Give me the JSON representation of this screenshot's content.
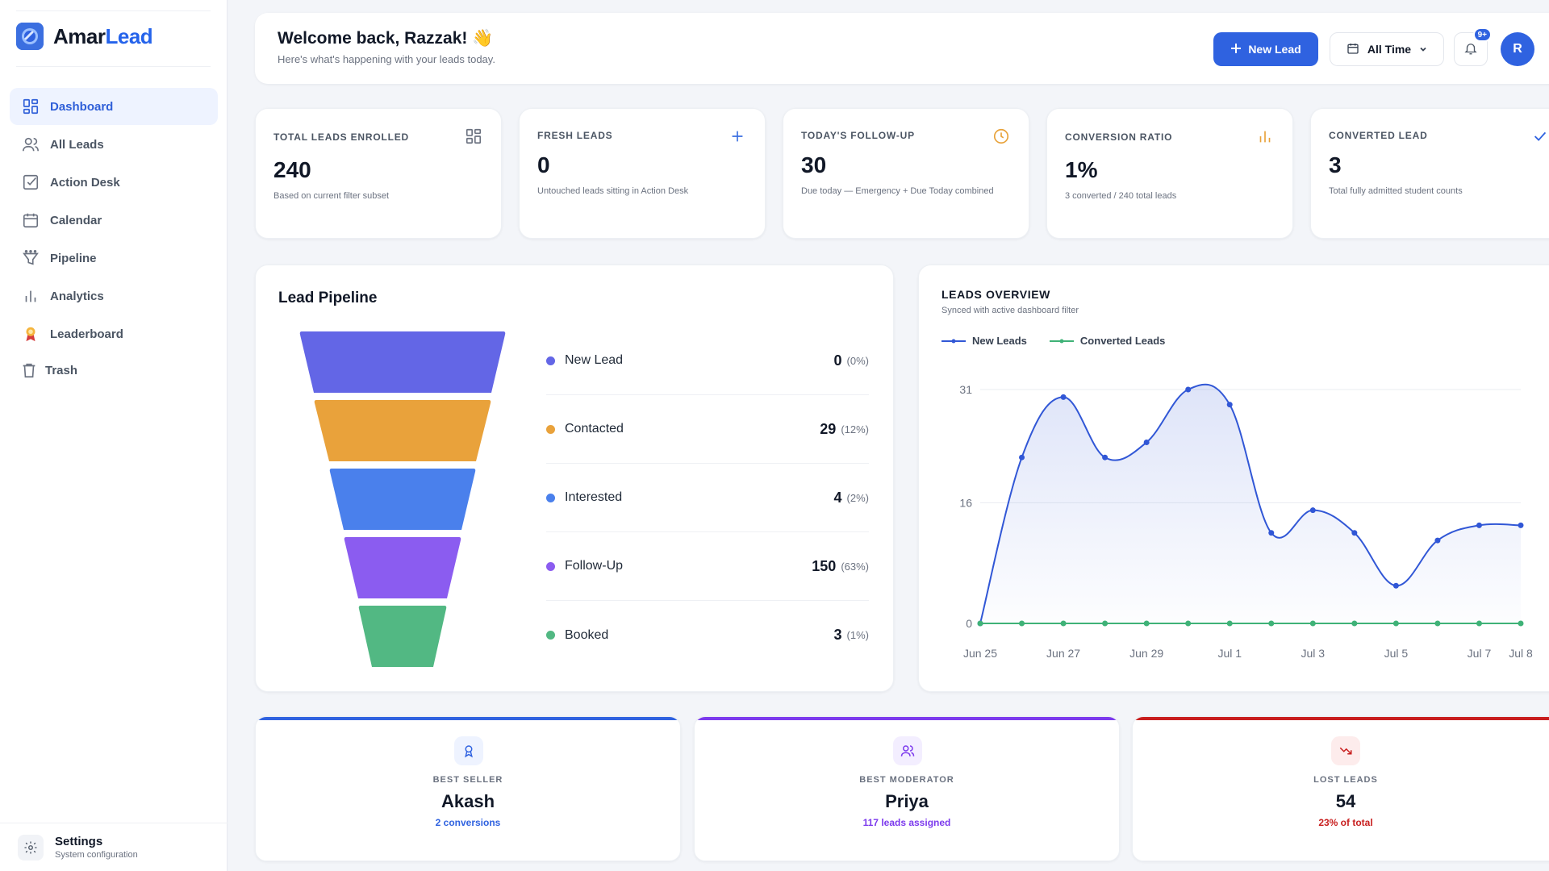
{
  "brand": {
    "name_part1": "Amar",
    "name_part2": "Lead"
  },
  "sidebar": {
    "items": [
      {
        "label": "Dashboard",
        "icon": "dashboard-icon",
        "active": true
      },
      {
        "label": "All Leads",
        "icon": "users-icon"
      },
      {
        "label": "Action Desk",
        "icon": "checkbox-icon"
      },
      {
        "label": "Calendar",
        "icon": "calendar-icon"
      },
      {
        "label": "Pipeline",
        "icon": "funnel-icon"
      },
      {
        "label": "Analytics",
        "icon": "bar-chart-icon"
      },
      {
        "label": "Leaderboard",
        "icon": "medal-icon"
      },
      {
        "label": "Trash",
        "icon": "trash-icon"
      }
    ],
    "settings": {
      "title": "Settings",
      "subtitle": "System configuration"
    }
  },
  "header": {
    "welcome": "Welcome back, Razzak! 👋",
    "subtitle": "Here's what's happening with your leads today.",
    "new_lead_label": "New Lead",
    "time_filter": "All Time",
    "notification_badge": "9+",
    "avatar_initial": "R"
  },
  "stats": [
    {
      "label": "TOTAL LEADS ENROLLED",
      "value": "240",
      "sub": "Based on current filter subset",
      "icon": "grid-icon",
      "color": "#6b7280"
    },
    {
      "label": "FRESH LEADS",
      "value": "0",
      "sub": "Untouched leads sitting in Action Desk",
      "icon": "plus-icon",
      "color": "#3b6fe0"
    },
    {
      "label": "TODAY'S FOLLOW-UP",
      "value": "30",
      "sub": "Due today — Emergency + Due Today combined",
      "icon": "clock-icon",
      "color": "#e8a23a"
    },
    {
      "label": "CONVERSION RATIO",
      "value": "1%",
      "sub": "3 converted / 240 total leads",
      "icon": "bar-chart-icon",
      "color": "#e8a23a"
    },
    {
      "label": "CONVERTED LEAD",
      "value": "3",
      "sub": "Total fully admitted student counts",
      "icon": "check-icon",
      "color": "#2f62e0"
    }
  ],
  "pipeline": {
    "title": "Lead Pipeline",
    "stages": [
      {
        "name": "New Lead",
        "value": "0",
        "pct": "(0%)",
        "color": "#6366e6"
      },
      {
        "name": "Contacted",
        "value": "29",
        "pct": "(12%)",
        "color": "#e9a23b"
      },
      {
        "name": "Interested",
        "value": "4",
        "pct": "(2%)",
        "color": "#4a80ec"
      },
      {
        "name": "Follow-Up",
        "value": "150",
        "pct": "(63%)",
        "color": "#8b5cf0"
      },
      {
        "name": "Booked",
        "value": "3",
        "pct": "(1%)",
        "color": "#52b883"
      }
    ]
  },
  "overview": {
    "title": "LEADS OVERVIEW",
    "subtitle": "Synced with active dashboard filter"
  },
  "chart_data": {
    "type": "line",
    "x": [
      "Jun 25",
      "Jun 26",
      "Jun 27",
      "Jun 28",
      "Jun 29",
      "Jun 30",
      "Jul 1",
      "Jul 2",
      "Jul 3",
      "Jul 4",
      "Jul 5",
      "Jul 6",
      "Jul 7",
      "Jul 8"
    ],
    "x_tick_labels": [
      "Jun 25",
      "Jun 27",
      "Jun 29",
      "Jul 1",
      "Jul 3",
      "Jul 5",
      "Jul 7",
      "Jul 8"
    ],
    "y_ticks": [
      0,
      16,
      31
    ],
    "ylim": [
      0,
      31
    ],
    "grid": true,
    "legend": "top-left",
    "series": [
      {
        "name": "New Leads",
        "color": "#3157d6",
        "values": [
          0,
          22,
          30,
          22,
          24,
          31,
          29,
          12,
          15,
          12,
          5,
          11,
          13,
          13
        ]
      },
      {
        "name": "Converted Leads",
        "color": "#3fb277",
        "values": [
          0,
          0,
          0,
          0,
          0,
          0,
          0,
          0,
          0,
          0,
          0,
          0,
          0,
          0
        ]
      }
    ]
  },
  "bottom_cards": [
    {
      "label": "BEST SELLER",
      "value": "Akash",
      "sub": "2 conversions",
      "icon": "award-icon",
      "color": "#2f62e0",
      "bg": "#eef3ff"
    },
    {
      "label": "BEST MODERATOR",
      "value": "Priya",
      "sub": "117 leads assigned",
      "icon": "users-icon",
      "color": "#7c3aed",
      "bg": "#f3eeff"
    },
    {
      "label": "LOST LEADS",
      "value": "54",
      "sub": "23% of total",
      "icon": "trending-down-icon",
      "color": "#c81e1e",
      "bg": "#fdecec"
    }
  ]
}
